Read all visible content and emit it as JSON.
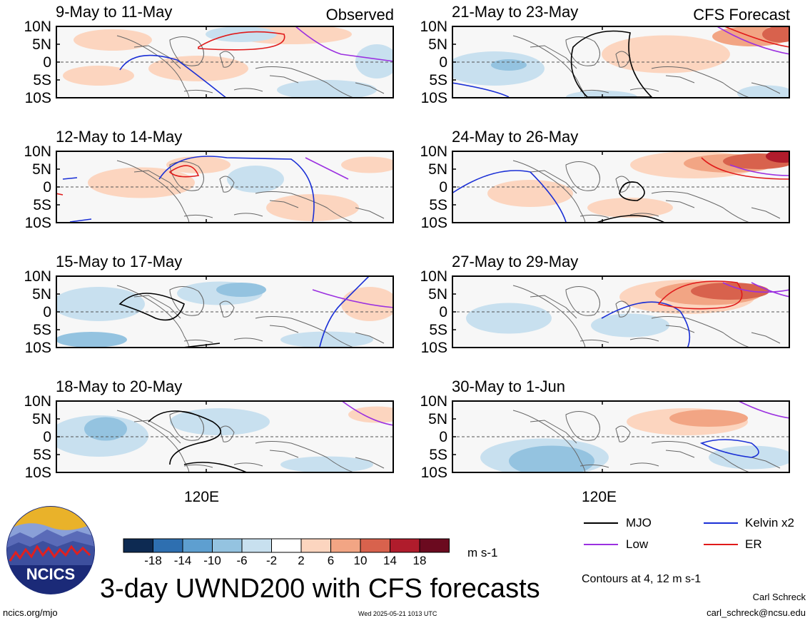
{
  "panels": [
    {
      "period": "9-May to 11-May",
      "tag": "Observed"
    },
    {
      "period": "21-May to 23-May",
      "tag": "CFS Forecast"
    },
    {
      "period": "12-May to 14-May",
      "tag": ""
    },
    {
      "period": "24-May to 26-May",
      "tag": ""
    },
    {
      "period": "15-May to 17-May",
      "tag": ""
    },
    {
      "period": "27-May to 29-May",
      "tag": ""
    },
    {
      "period": "18-May to 20-May",
      "tag": ""
    },
    {
      "period": "30-May to 1-Jun",
      "tag": ""
    }
  ],
  "lat_ticks": [
    "10N",
    "5N",
    "0",
    "5S",
    "10S"
  ],
  "lon_tick": "120E",
  "colorbar": {
    "tick_labels": [
      "-18",
      "-14",
      "-10",
      "-6",
      "-2",
      "2",
      "6",
      "10",
      "14",
      "18"
    ],
    "units": "m s-1",
    "colors": [
      "#0d2a52",
      "#2e6fb0",
      "#5e9fd0",
      "#94c3e0",
      "#c8e0ef",
      "#ffffff",
      "#fcd5bf",
      "#f2a584",
      "#d8624d",
      "#b01c2c",
      "#6b0a1f"
    ]
  },
  "legend": [
    {
      "label": "MJO",
      "color": "#000000"
    },
    {
      "label": "Kelvin x2",
      "color": "#1a2fd6"
    },
    {
      "label": "Low",
      "color": "#9b30e0"
    },
    {
      "label": "ER",
      "color": "#e01a1a"
    }
  ],
  "contour_note": "Contours at 4, 12 m s-1",
  "title": "3-day UWND200 with CFS forecasts",
  "footer": {
    "url": "ncics.org/mjo",
    "timestamp": "Wed 2025-05-21 1013 UTC",
    "author": "Carl Schreck",
    "email": "carl_schreck@ncsu.edu"
  },
  "logo_text": "NCICS"
}
